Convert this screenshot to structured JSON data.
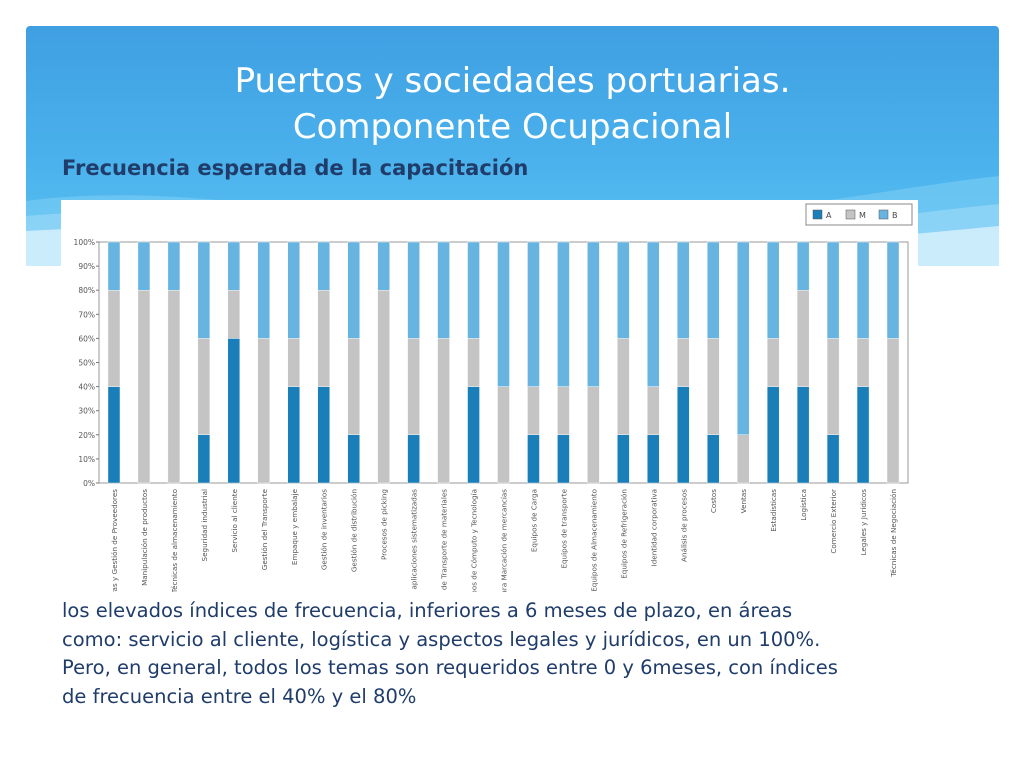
{
  "slide": {
    "title_line1": "Puertos y sociedades portuarias.",
    "title_line2": "Componente Ocupacional",
    "subtitle": "Frecuencia esperada de la capacitación",
    "text_fragment": "s,",
    "text_lines": [
      "los elevados índices de frecuencia, inferiores a 6 meses de plazo, en áreas",
      "como: servicio al cliente, logística y aspectos legales y jurídicos, en un 100%.",
      "Pero, en general, todos los temas son requeridos entre 0 y 6meses, con índices",
      "de frecuencia entre el 40% y el 80%"
    ]
  },
  "colors": {
    "A": "#1a7fb8",
    "M": "#c4c4c4",
    "B": "#68b4e0",
    "text_dark": "#1f3c6a",
    "banner": "#4ab1ec"
  },
  "chart_data": {
    "type": "bar",
    "stacked": true,
    "ylim": [
      0,
      100
    ],
    "y_ticks": [
      "0%",
      "10%",
      "20%",
      "30%",
      "40%",
      "50%",
      "60%",
      "70%",
      "80%",
      "90%",
      "100%"
    ],
    "legend_position": "top-right",
    "categories": [
      "Compras y Gestión de Proveedores",
      "Manipulación de productos",
      "Técnicas de almacenamiento",
      "Seguridad industrial",
      "Servicio al cliente",
      "Gestión del Transporte",
      "Empaque y embalaje",
      "Gestión de inventarios",
      "Gestión de distribución",
      "Procesos de picking",
      "Manejo de aplicaciones sistematizadas",
      "Equipos de Transporte de materiales",
      "Equipos de Cómputo y Tecnología",
      "Equipos para Marcación de mercancías",
      "Equipos de Carga",
      "Equipos de transporte",
      "Equipos de Almacenamiento",
      "Equipos de Refrigeración",
      "Identidad corporativa",
      "Análisis de procesos",
      "Costos",
      "Ventas",
      "Estadísticas",
      "Logística",
      "Comercio Exterior",
      "Legales y Jurídicos",
      "Técnicas de Negociación"
    ],
    "series": [
      {
        "name": "A",
        "values": [
          40,
          0,
          0,
          20,
          60,
          0,
          40,
          40,
          20,
          0,
          20,
          0,
          40,
          0,
          20,
          20,
          0,
          20,
          20,
          40,
          20,
          0,
          40,
          40,
          20,
          40,
          0
        ]
      },
      {
        "name": "M",
        "values": [
          40,
          80,
          80,
          40,
          20,
          60,
          20,
          40,
          40,
          80,
          40,
          60,
          20,
          40,
          20,
          20,
          40,
          40,
          20,
          20,
          40,
          20,
          20,
          40,
          40,
          20,
          60
        ]
      },
      {
        "name": "B",
        "values": [
          20,
          20,
          20,
          40,
          20,
          40,
          40,
          20,
          40,
          20,
          40,
          40,
          40,
          60,
          60,
          60,
          60,
          40,
          60,
          40,
          40,
          80,
          40,
          20,
          40,
          40,
          40
        ]
      }
    ]
  }
}
